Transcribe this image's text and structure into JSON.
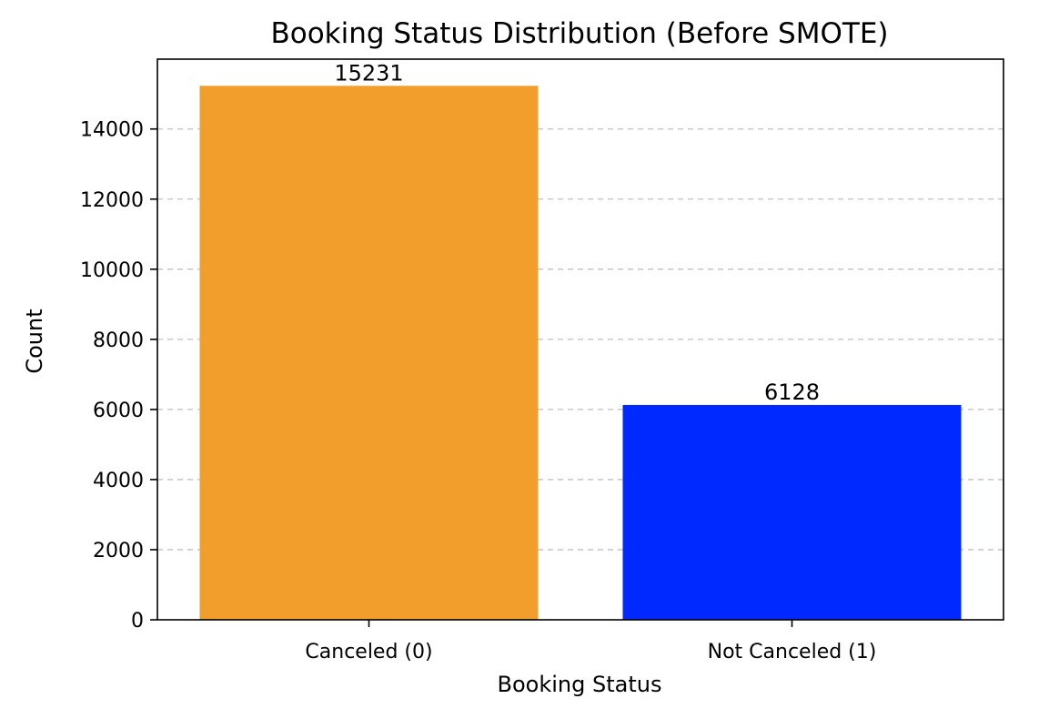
{
  "chart_data": {
    "type": "bar",
    "title": "Booking Status Distribution (Before SMOTE)",
    "xlabel": "Booking Status",
    "ylabel": "Count",
    "categories": [
      "Canceled (0)",
      "Not Canceled (1)"
    ],
    "values": [
      15231,
      6128
    ],
    "data_labels": [
      "15231",
      "6128"
    ],
    "bar_colors": [
      "#f19e2c",
      "#0029ff"
    ],
    "ylim": [
      0,
      15992
    ],
    "yticks": [
      0,
      2000,
      4000,
      6000,
      8000,
      10000,
      12000,
      14000
    ],
    "ytick_labels": [
      "0",
      "2000",
      "4000",
      "6000",
      "8000",
      "10000",
      "12000",
      "14000"
    ],
    "grid": "y-axis dashed",
    "legend": "none"
  }
}
